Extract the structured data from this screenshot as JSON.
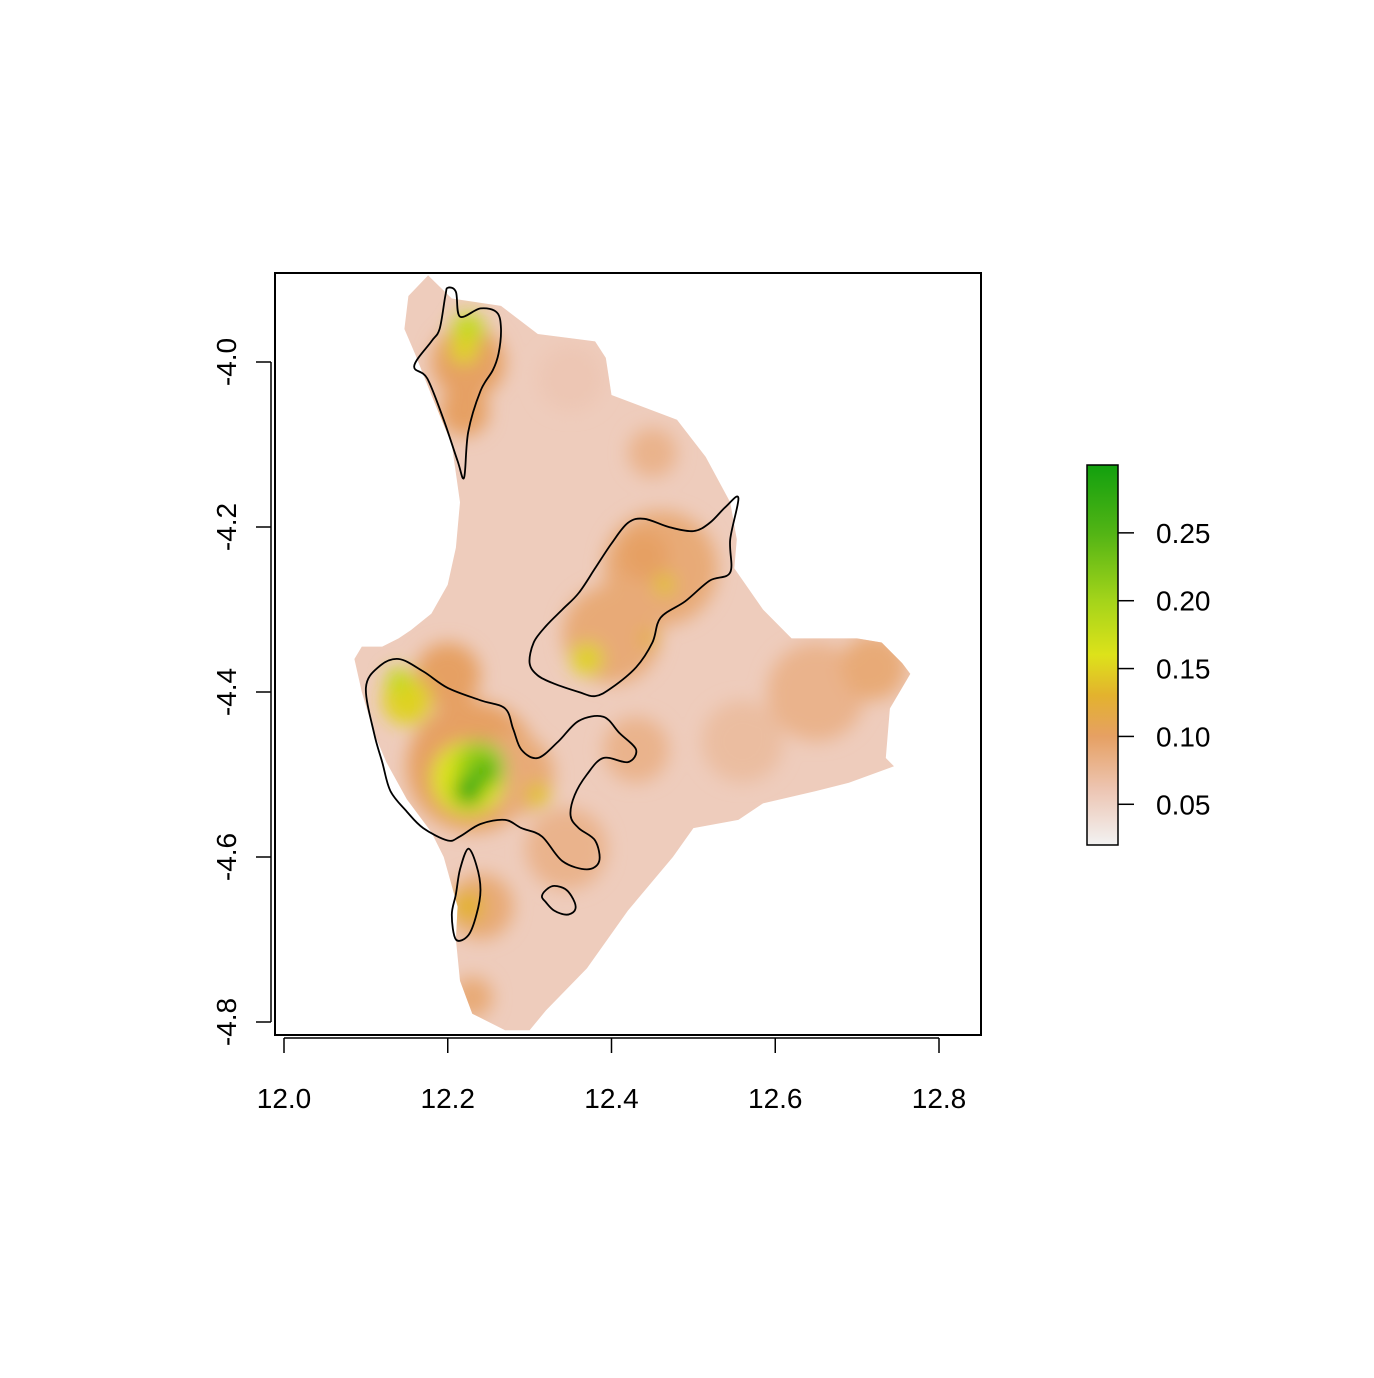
{
  "chart_data": {
    "type": "heatmap",
    "subtype": "raster map with contour outlines",
    "title": "",
    "xlabel": "",
    "ylabel": "",
    "xlim": [
      12.0,
      12.85
    ],
    "ylim": [
      -4.8,
      -3.89
    ],
    "x_ticks": [
      {
        "value": 12.0,
        "label": "12.0"
      },
      {
        "value": 12.2,
        "label": "12.2"
      },
      {
        "value": 12.4,
        "label": "12.4"
      },
      {
        "value": 12.6,
        "label": "12.6"
      },
      {
        "value": 12.8,
        "label": "12.8"
      }
    ],
    "y_ticks": [
      {
        "value": -4.0,
        "label": "-4.0"
      },
      {
        "value": -4.2,
        "label": "-4.2"
      },
      {
        "value": -4.4,
        "label": "-4.4"
      },
      {
        "value": -4.6,
        "label": "-4.6"
      },
      {
        "value": -4.8,
        "label": "-4.8"
      }
    ],
    "colorbar": {
      "range": [
        0.02,
        0.3
      ],
      "ticks": [
        {
          "value": 0.05,
          "label": "0.05"
        },
        {
          "value": 0.1,
          "label": "0.10"
        },
        {
          "value": 0.15,
          "label": "0.15"
        },
        {
          "value": 0.2,
          "label": "0.20"
        },
        {
          "value": 0.25,
          "label": "0.25"
        }
      ],
      "color_stops": [
        {
          "value": 0.02,
          "color": "#f2f2f2"
        },
        {
          "value": 0.06,
          "color": "#edc6b4"
        },
        {
          "value": 0.1,
          "color": "#e6a063"
        },
        {
          "value": 0.13,
          "color": "#e3b22e"
        },
        {
          "value": 0.16,
          "color": "#dde21a"
        },
        {
          "value": 0.2,
          "color": "#a4d41a"
        },
        {
          "value": 0.25,
          "color": "#52b415"
        },
        {
          "value": 0.3,
          "color": "#12a00e"
        }
      ]
    },
    "region_outline": [
      [
        12.176,
        -3.895
      ],
      [
        12.205,
        -3.923
      ],
      [
        12.265,
        -3.932
      ],
      [
        12.31,
        -3.966
      ],
      [
        12.38,
        -3.975
      ],
      [
        12.393,
        -3.995
      ],
      [
        12.4,
        -4.04
      ],
      [
        12.48,
        -4.07
      ],
      [
        12.515,
        -4.115
      ],
      [
        12.545,
        -4.17
      ],
      [
        12.553,
        -4.215
      ],
      [
        12.55,
        -4.25
      ],
      [
        12.585,
        -4.3
      ],
      [
        12.62,
        -4.335
      ],
      [
        12.7,
        -4.335
      ],
      [
        12.73,
        -4.34
      ],
      [
        12.755,
        -4.365
      ],
      [
        12.765,
        -4.378
      ],
      [
        12.74,
        -4.42
      ],
      [
        12.735,
        -4.48
      ],
      [
        12.745,
        -4.49
      ],
      [
        12.69,
        -4.51
      ],
      [
        12.65,
        -4.52
      ],
      [
        12.585,
        -4.535
      ],
      [
        12.555,
        -4.555
      ],
      [
        12.5,
        -4.565
      ],
      [
        12.475,
        -4.6
      ],
      [
        12.42,
        -4.665
      ],
      [
        12.37,
        -4.735
      ],
      [
        12.32,
        -4.786
      ],
      [
        12.3,
        -4.81
      ],
      [
        12.27,
        -4.81
      ],
      [
        12.23,
        -4.79
      ],
      [
        12.215,
        -4.75
      ],
      [
        12.21,
        -4.7
      ],
      [
        12.212,
        -4.66
      ],
      [
        12.195,
        -4.6
      ],
      [
        12.18,
        -4.57
      ],
      [
        12.15,
        -4.53
      ],
      [
        12.125,
        -4.485
      ],
      [
        12.11,
        -4.45
      ],
      [
        12.095,
        -4.4
      ],
      [
        12.086,
        -4.36
      ],
      [
        12.095,
        -4.345
      ],
      [
        12.12,
        -4.345
      ],
      [
        12.14,
        -4.335
      ],
      [
        12.155,
        -4.325
      ],
      [
        12.18,
        -4.305
      ],
      [
        12.2,
        -4.27
      ],
      [
        12.21,
        -4.225
      ],
      [
        12.215,
        -4.17
      ],
      [
        12.205,
        -4.1
      ],
      [
        12.18,
        -4.04
      ],
      [
        12.16,
        -3.99
      ],
      [
        12.147,
        -3.96
      ],
      [
        12.152,
        -3.92
      ]
    ],
    "value_patches": [
      {
        "center": [
          12.2,
          -4.38
        ],
        "r": 0.04,
        "value": 0.1
      },
      {
        "center": [
          12.23,
          -4.49
        ],
        "r": 0.08,
        "value": 0.1
      },
      {
        "center": [
          12.28,
          -4.5
        ],
        "r": 0.05,
        "value": 0.09
      },
      {
        "center": [
          12.225,
          -4.0
        ],
        "r": 0.045,
        "value": 0.1
      },
      {
        "center": [
          12.22,
          -4.06
        ],
        "r": 0.03,
        "value": 0.1
      },
      {
        "center": [
          12.46,
          -4.25
        ],
        "r": 0.07,
        "value": 0.09
      },
      {
        "center": [
          12.4,
          -4.33
        ],
        "r": 0.06,
        "value": 0.09
      },
      {
        "center": [
          12.44,
          -4.235
        ],
        "r": 0.03,
        "value": 0.1
      },
      {
        "center": [
          12.345,
          -4.59
        ],
        "r": 0.05,
        "value": 0.08
      },
      {
        "center": [
          12.24,
          -4.66
        ],
        "r": 0.04,
        "value": 0.09
      },
      {
        "center": [
          12.65,
          -4.4
        ],
        "r": 0.06,
        "value": 0.08
      },
      {
        "center": [
          12.72,
          -4.37
        ],
        "r": 0.04,
        "value": 0.09
      },
      {
        "center": [
          12.43,
          -4.47
        ],
        "r": 0.04,
        "value": 0.08
      },
      {
        "center": [
          12.56,
          -4.46
        ],
        "r": 0.05,
        "value": 0.07
      },
      {
        "center": [
          12.45,
          -4.11
        ],
        "r": 0.03,
        "value": 0.08
      },
      {
        "center": [
          12.35,
          -4.02
        ],
        "r": 0.04,
        "value": 0.06
      },
      {
        "center": [
          12.23,
          -4.77
        ],
        "r": 0.025,
        "value": 0.09
      },
      {
        "center": [
          12.15,
          -4.41
        ],
        "r": 0.03,
        "value": 0.15
      },
      {
        "center": [
          12.14,
          -4.385
        ],
        "r": 0.015,
        "value": 0.18
      },
      {
        "center": [
          12.225,
          -4.505
        ],
        "r": 0.045,
        "value": 0.16
      },
      {
        "center": [
          12.24,
          -4.49
        ],
        "r": 0.03,
        "value": 0.21
      },
      {
        "center": [
          12.225,
          -4.52
        ],
        "r": 0.018,
        "value": 0.27
      },
      {
        "center": [
          12.245,
          -4.495
        ],
        "r": 0.012,
        "value": 0.28
      },
      {
        "center": [
          12.31,
          -4.525
        ],
        "r": 0.015,
        "value": 0.14
      },
      {
        "center": [
          12.225,
          -3.96
        ],
        "r": 0.02,
        "value": 0.18
      },
      {
        "center": [
          12.22,
          -3.985
        ],
        "r": 0.018,
        "value": 0.15
      },
      {
        "center": [
          12.37,
          -4.36
        ],
        "r": 0.02,
        "value": 0.15
      },
      {
        "center": [
          12.465,
          -4.27
        ],
        "r": 0.013,
        "value": 0.14
      },
      {
        "center": [
          12.225,
          -4.66
        ],
        "r": 0.02,
        "value": 0.13
      },
      {
        "center": [
          12.445,
          -4.335
        ],
        "r": 0.01,
        "value": 0.13
      }
    ],
    "contours": [
      [
        [
          12.2,
          -3.91
        ],
        [
          12.21,
          -3.915
        ],
        [
          12.215,
          -3.945
        ],
        [
          12.24,
          -3.935
        ],
        [
          12.26,
          -3.94
        ],
        [
          12.265,
          -3.96
        ],
        [
          12.262,
          -3.99
        ],
        [
          12.255,
          -4.01
        ],
        [
          12.24,
          -4.035
        ],
        [
          12.225,
          -4.085
        ],
        [
          12.22,
          -4.14
        ],
        [
          12.212,
          -4.12
        ],
        [
          12.195,
          -4.07
        ],
        [
          12.175,
          -4.02
        ],
        [
          12.159,
          -4.005
        ],
        [
          12.18,
          -3.975
        ],
        [
          12.19,
          -3.96
        ],
        [
          12.197,
          -3.92
        ]
      ],
      [
        [
          12.555,
          -4.165
        ],
        [
          12.545,
          -4.215
        ],
        [
          12.545,
          -4.255
        ],
        [
          12.52,
          -4.265
        ],
        [
          12.49,
          -4.29
        ],
        [
          12.46,
          -4.31
        ],
        [
          12.45,
          -4.34
        ],
        [
          12.43,
          -4.37
        ],
        [
          12.4,
          -4.395
        ],
        [
          12.38,
          -4.405
        ],
        [
          12.36,
          -4.4
        ],
        [
          12.33,
          -4.39
        ],
        [
          12.31,
          -4.38
        ],
        [
          12.3,
          -4.365
        ],
        [
          12.305,
          -4.34
        ],
        [
          12.32,
          -4.32
        ],
        [
          12.34,
          -4.3
        ],
        [
          12.36,
          -4.28
        ],
        [
          12.38,
          -4.25
        ],
        [
          12.4,
          -4.22
        ],
        [
          12.42,
          -4.195
        ],
        [
          12.44,
          -4.19
        ],
        [
          12.47,
          -4.2
        ],
        [
          12.5,
          -4.205
        ],
        [
          12.52,
          -4.195
        ],
        [
          12.54,
          -4.175
        ]
      ],
      [
        [
          12.1,
          -4.395
        ],
        [
          12.115,
          -4.37
        ],
        [
          12.14,
          -4.36
        ],
        [
          12.17,
          -4.375
        ],
        [
          12.2,
          -4.395
        ],
        [
          12.24,
          -4.41
        ],
        [
          12.27,
          -4.42
        ],
        [
          12.28,
          -4.445
        ],
        [
          12.29,
          -4.47
        ],
        [
          12.31,
          -4.48
        ],
        [
          12.335,
          -4.46
        ],
        [
          12.36,
          -4.435
        ],
        [
          12.39,
          -4.43
        ],
        [
          12.41,
          -4.45
        ],
        [
          12.43,
          -4.47
        ],
        [
          12.42,
          -4.485
        ],
        [
          12.39,
          -4.48
        ],
        [
          12.37,
          -4.5
        ],
        [
          12.355,
          -4.525
        ],
        [
          12.35,
          -4.55
        ],
        [
          12.36,
          -4.565
        ],
        [
          12.38,
          -4.58
        ],
        [
          12.385,
          -4.605
        ],
        [
          12.37,
          -4.615
        ],
        [
          12.34,
          -4.605
        ],
        [
          12.315,
          -4.575
        ],
        [
          12.29,
          -4.565
        ],
        [
          12.27,
          -4.555
        ],
        [
          12.24,
          -4.56
        ],
        [
          12.215,
          -4.575
        ],
        [
          12.2,
          -4.58
        ],
        [
          12.17,
          -4.565
        ],
        [
          12.15,
          -4.545
        ],
        [
          12.13,
          -4.52
        ],
        [
          12.12,
          -4.485
        ],
        [
          12.11,
          -4.45
        ]
      ],
      [
        [
          12.225,
          -4.59
        ],
        [
          12.235,
          -4.61
        ],
        [
          12.24,
          -4.64
        ],
        [
          12.235,
          -4.67
        ],
        [
          12.225,
          -4.695
        ],
        [
          12.21,
          -4.7
        ],
        [
          12.205,
          -4.67
        ],
        [
          12.21,
          -4.645
        ],
        [
          12.215,
          -4.615
        ]
      ],
      [
        [
          12.32,
          -4.64
        ],
        [
          12.33,
          -4.635
        ],
        [
          12.345,
          -4.64
        ],
        [
          12.355,
          -4.655
        ],
        [
          12.355,
          -4.665
        ],
        [
          12.345,
          -4.67
        ],
        [
          12.33,
          -4.665
        ],
        [
          12.32,
          -4.655
        ],
        [
          12.315,
          -4.648
        ]
      ]
    ]
  }
}
